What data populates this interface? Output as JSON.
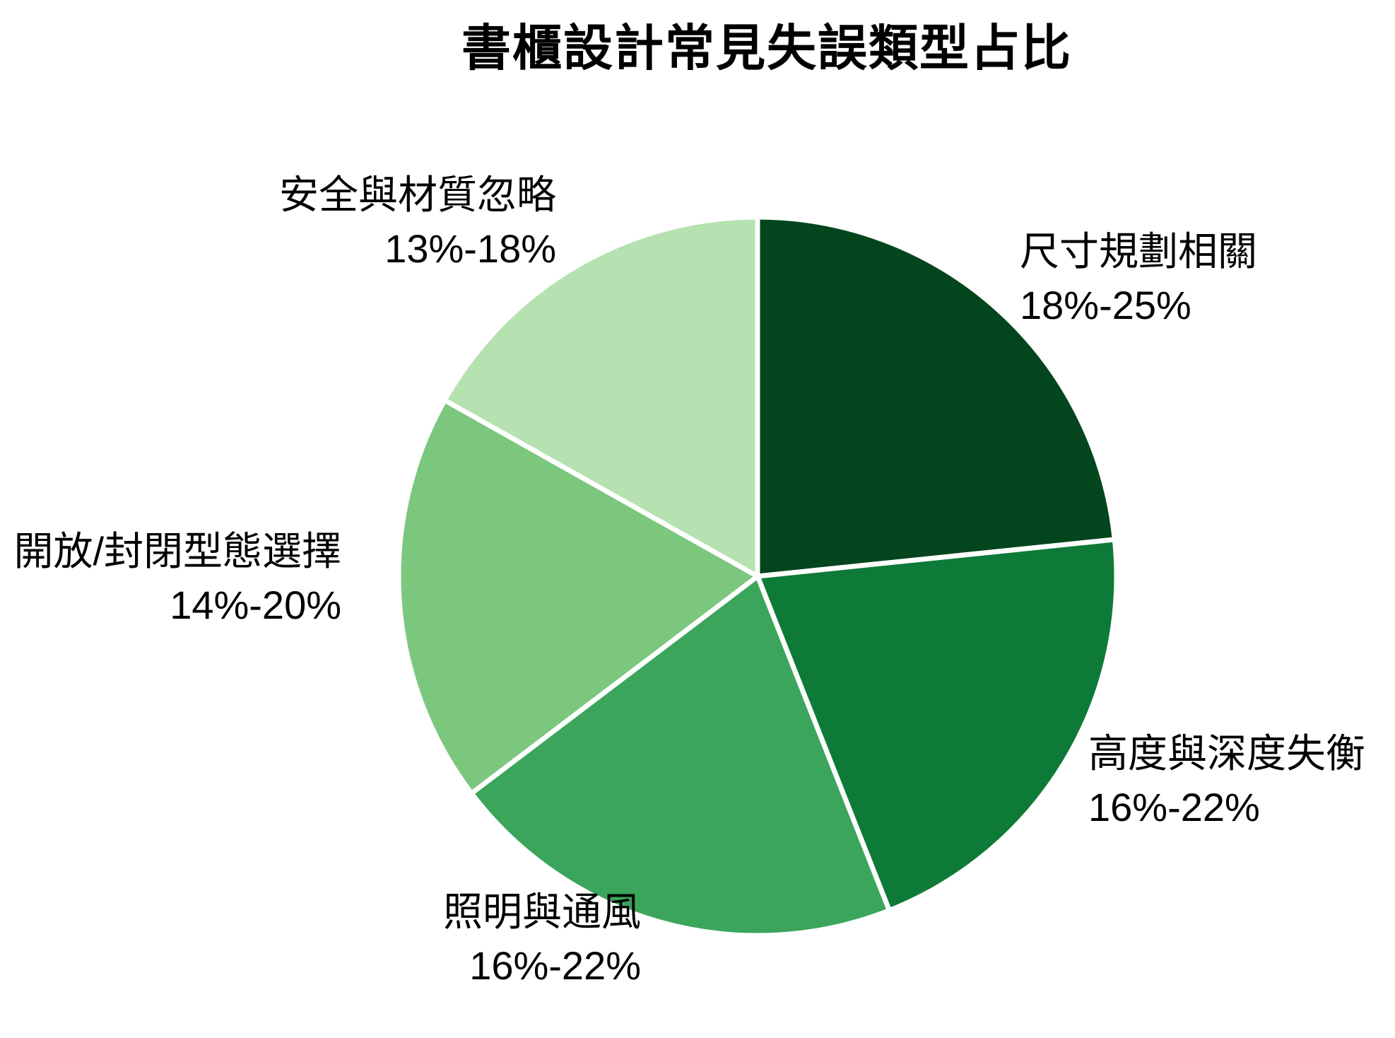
{
  "page": {
    "background": "#ffffff",
    "text_color": "#000000"
  },
  "chart_data": {
    "type": "pie",
    "title": "書櫃設計常見失誤類型占比",
    "legend": "none",
    "grid": false,
    "start_angle_deg": -90,
    "direction": "clockwise",
    "slice_gap_color": "#ffffff",
    "slices": [
      {
        "label": "尺寸規劃相關",
        "range": "18%-25%",
        "value": 21.5,
        "color": "#03451c"
      },
      {
        "label": "高度與深度失衡",
        "range": "16%-22%",
        "value": 19,
        "color": "#0e7a37"
      },
      {
        "label": "照明與通風",
        "range": "16%-22%",
        "value": 19,
        "color": "#3ba55c"
      },
      {
        "label": "開放/封閉型態選擇",
        "range": "14%-20%",
        "value": 17,
        "color": "#7cc77e"
      },
      {
        "label": "安全與材質忽略",
        "range": "13%-18%",
        "value": 15.5,
        "color": "#b5e2b0"
      }
    ]
  }
}
